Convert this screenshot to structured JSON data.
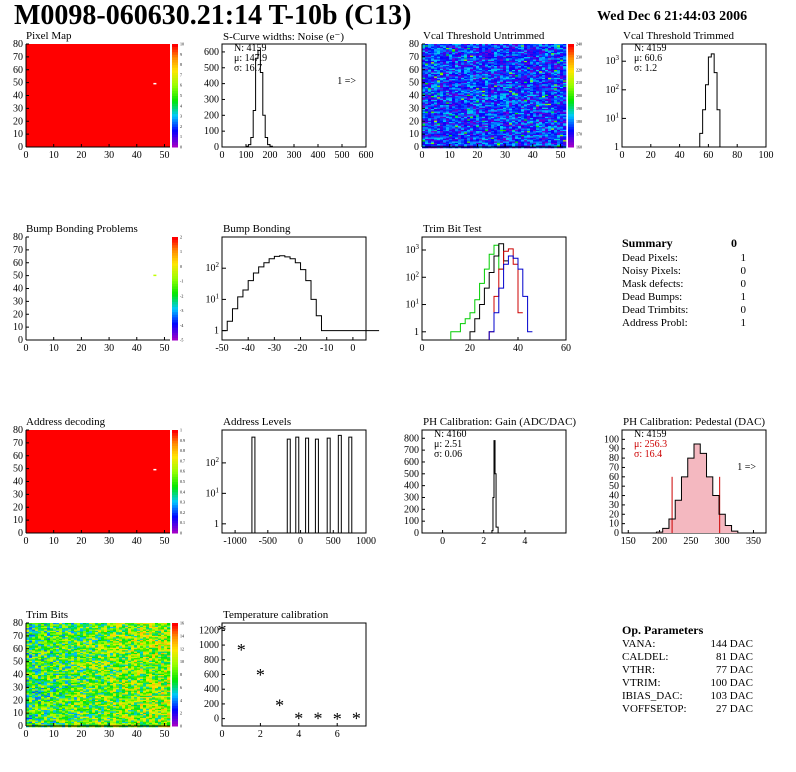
{
  "header": {
    "title": "M0098-060630.21:14 T-10b (C13)",
    "timestamp": "Wed Dec  6 21:44:03 2006"
  },
  "chart_data": [
    {
      "id": "pixel-map",
      "type": "heatmap",
      "title": "Pixel Map",
      "xlim": [
        0,
        52
      ],
      "ylim": [
        0,
        80
      ],
      "xticks": [
        0,
        10,
        20,
        30,
        40,
        50
      ],
      "yticks": [
        0,
        10,
        20,
        30,
        40,
        50,
        60,
        70,
        80
      ],
      "fill_color": "#ff0000",
      "hot_pixels": [
        [
          46,
          49
        ]
      ],
      "colorbar": {
        "min": 0,
        "max": 10,
        "ticks": [
          0,
          1,
          2,
          3,
          4,
          5,
          6,
          7,
          8,
          9,
          10
        ]
      }
    },
    {
      "id": "scurve-noise",
      "type": "line",
      "title": "S-Curve widths: Noise (e⁻)",
      "xlim": [
        0,
        600
      ],
      "ylim": [
        0,
        650
      ],
      "xticks": [
        0,
        100,
        200,
        300,
        400,
        500,
        600
      ],
      "yticks": [
        0,
        100,
        200,
        300,
        400,
        500,
        600
      ],
      "x": [
        90,
        100,
        110,
        120,
        130,
        140,
        150,
        160,
        170,
        180,
        190,
        200,
        210,
        220
      ],
      "y": [
        0,
        5,
        15,
        60,
        230,
        560,
        610,
        470,
        200,
        60,
        15,
        5,
        0,
        0
      ],
      "stats": {
        "n": "N: 4159",
        "mean": "μ: 147.9",
        "sigma": "σ: 16.7"
      },
      "annotation": "1 =>"
    },
    {
      "id": "vcal-untrimmed",
      "type": "heatmap",
      "title": "Vcal Threshold Untrimmed",
      "xlim": [
        0,
        52
      ],
      "ylim": [
        0,
        80
      ],
      "xticks": [
        0,
        10,
        20,
        30,
        40,
        50
      ],
      "yticks": [
        0,
        10,
        20,
        30,
        40,
        50,
        60,
        70,
        80
      ],
      "value_range": [
        160,
        240
      ],
      "colorbar": {
        "min": 160,
        "max": 240,
        "ticks": [
          160,
          170,
          180,
          190,
          200,
          210,
          220,
          230,
          240
        ]
      }
    },
    {
      "id": "vcal-trimmed",
      "type": "line",
      "title": "Vcal Threshold Trimmed",
      "log_y": true,
      "xlim": [
        0,
        100
      ],
      "ylim": [
        1,
        4000
      ],
      "xticks": [
        0,
        20,
        40,
        60,
        80,
        100
      ],
      "ytick_exps": [
        0,
        1,
        2,
        3
      ],
      "x": [
        52,
        54,
        56,
        58,
        60,
        62,
        64,
        66,
        68
      ],
      "y": [
        1,
        3,
        20,
        150,
        1400,
        1800,
        400,
        20,
        1
      ],
      "stats": {
        "n": "N: 4159",
        "mean": "μ: 60.6",
        "sigma": "σ:  1.2"
      }
    },
    {
      "id": "bump-problems",
      "type": "heatmap",
      "title": "Bump Bonding Problems",
      "xlim": [
        0,
        52
      ],
      "ylim": [
        0,
        80
      ],
      "xticks": [
        0,
        10,
        20,
        30,
        40,
        50
      ],
      "yticks": [
        0,
        10,
        20,
        30,
        40,
        50,
        60,
        70,
        80
      ],
      "fill_color": "#ffffff",
      "hot_pixels": [
        [
          46,
          50
        ]
      ],
      "colorbar": {
        "min": -5,
        "max": 2,
        "ticks": [
          -5,
          -4,
          -3,
          -2,
          -1,
          0,
          1,
          2
        ]
      }
    },
    {
      "id": "bump-bonding",
      "type": "line",
      "title": "Bump Bonding",
      "log_y": true,
      "xlim": [
        -50,
        5
      ],
      "ylim": [
        0.5,
        1000
      ],
      "xticks": [
        -50,
        -40,
        -30,
        -20,
        -10,
        0
      ],
      "ytick_exps": [
        0,
        1,
        2
      ],
      "x": [
        -50,
        -48,
        -46,
        -44,
        -42,
        -40,
        -38,
        -36,
        -34,
        -32,
        -30,
        -28,
        -26,
        -24,
        -22,
        -20,
        -18,
        -16,
        -14,
        -12,
        -10,
        0
      ],
      "y": [
        1,
        2,
        5,
        12,
        20,
        40,
        70,
        110,
        150,
        200,
        240,
        250,
        230,
        200,
        150,
        90,
        40,
        10,
        3,
        1,
        1,
        1
      ]
    },
    {
      "id": "trim-bit-test",
      "type": "line",
      "title": "Trim Bit Test",
      "log_y": true,
      "xlim": [
        0,
        60
      ],
      "ylim": [
        0.5,
        3000
      ],
      "xticks": [
        0,
        20,
        40,
        60
      ],
      "ytick_exps": [
        0,
        1,
        2,
        3
      ],
      "series": [
        {
          "color": "#00cc00",
          "x": [
            12,
            14,
            16,
            18,
            20,
            22,
            24,
            26,
            28,
            30,
            32
          ],
          "y": [
            1,
            1,
            2,
            3,
            5,
            15,
            60,
            200,
            700,
            1500,
            200
          ]
        },
        {
          "color": "#000000",
          "x": [
            20,
            22,
            24,
            26,
            28,
            30,
            32,
            34
          ],
          "y": [
            1,
            3,
            10,
            40,
            150,
            600,
            1700,
            400
          ]
        },
        {
          "color": "#cc0000",
          "x": [
            28,
            30,
            32,
            34,
            36,
            38,
            40
          ],
          "y": [
            1,
            20,
            200,
            900,
            1100,
            300,
            5
          ]
        },
        {
          "color": "#0000cc",
          "x": [
            28,
            30,
            32,
            34,
            36,
            38,
            40,
            42,
            44
          ],
          "y": [
            1,
            5,
            40,
            300,
            600,
            500,
            200,
            20,
            1
          ]
        }
      ]
    },
    {
      "id": "address-decoding",
      "type": "heatmap",
      "title": "Address decoding",
      "xlim": [
        0,
        52
      ],
      "ylim": [
        0,
        80
      ],
      "xticks": [
        0,
        10,
        20,
        30,
        40,
        50
      ],
      "yticks": [
        0,
        10,
        20,
        30,
        40,
        50,
        60,
        70,
        80
      ],
      "fill_color": "#ff0000",
      "hot_pixels": [
        [
          46,
          49
        ]
      ],
      "colorbar": {
        "min": 0,
        "max": 1,
        "ticks": [
          0,
          0.1,
          0.2,
          0.3,
          0.4,
          0.5,
          0.6,
          0.7,
          0.8,
          0.9,
          1
        ]
      }
    },
    {
      "id": "address-levels",
      "type": "bar",
      "title": "Address Levels",
      "log_y": true,
      "xlim": [
        -1200,
        1000
      ],
      "ylim": [
        0.5,
        1200
      ],
      "xticks": [
        -1000,
        -500,
        0,
        500,
        1000
      ],
      "ytick_exps": [
        0,
        1,
        2
      ],
      "peaks": [
        [
          -720,
          700
        ],
        [
          -180,
          600
        ],
        [
          -50,
          700
        ],
        [
          100,
          650
        ],
        [
          250,
          600
        ],
        [
          430,
          650
        ],
        [
          600,
          800
        ],
        [
          760,
          700
        ]
      ]
    },
    {
      "id": "ph-gain",
      "type": "line",
      "title": "PH Calibration: Gain (ADC/DAC)",
      "xlim": [
        -1,
        6
      ],
      "ylim": [
        0,
        870
      ],
      "xticks": [
        0,
        2,
        4
      ],
      "yticks": [
        0,
        100,
        200,
        300,
        400,
        500,
        600,
        700,
        800
      ],
      "x": [
        2.3,
        2.4,
        2.45,
        2.5,
        2.55,
        2.6,
        2.7
      ],
      "y": [
        0,
        20,
        300,
        780,
        500,
        50,
        0
      ],
      "stats": {
        "n": "N: 4160",
        "mean": "μ: 2.51",
        "sigma": "σ: 0.06"
      }
    },
    {
      "id": "ph-pedestal",
      "type": "line",
      "title": "PH Calibration: Pedestal (DAC)",
      "xlim": [
        140,
        370
      ],
      "ylim": [
        0,
        110
      ],
      "xticks": [
        150,
        200,
        250,
        300,
        350
      ],
      "yticks": [
        0,
        10,
        20,
        30,
        40,
        50,
        60,
        70,
        80,
        90,
        100
      ],
      "x": [
        195,
        205,
        215,
        225,
        235,
        245,
        255,
        265,
        275,
        285,
        295,
        305,
        315,
        325
      ],
      "y": [
        1,
        5,
        15,
        35,
        60,
        80,
        95,
        85,
        60,
        40,
        20,
        8,
        2,
        0
      ],
      "marker_x": [
        220,
        296
      ],
      "stats": {
        "n": "N: 4159",
        "mean": "μ: 256.3",
        "sigma": "σ: 16.4"
      },
      "annotation": "1 =>"
    },
    {
      "id": "trim-bits",
      "type": "heatmap",
      "title": "Trim Bits",
      "xlim": [
        0,
        52
      ],
      "ylim": [
        0,
        80
      ],
      "xticks": [
        0,
        10,
        20,
        30,
        40,
        50
      ],
      "yticks": [
        0,
        10,
        20,
        30,
        40,
        50,
        60,
        70,
        80
      ],
      "value_range": [
        0,
        16
      ],
      "colorbar": {
        "min": 0,
        "max": 16,
        "ticks": [
          0,
          2,
          4,
          6,
          8,
          10,
          12,
          14,
          16
        ]
      }
    },
    {
      "id": "temperature-calibration",
      "type": "scatter",
      "title": "Temperature calibration",
      "xlim": [
        0,
        7.5
      ],
      "ylim": [
        -100,
        1300
      ],
      "xticks": [
        0,
        2,
        4,
        6
      ],
      "yticks": [
        0,
        200,
        400,
        600,
        800,
        1000,
        1200
      ],
      "x": [
        0,
        1,
        2,
        3,
        4,
        5,
        6,
        7
      ],
      "y": [
        1200,
        930,
        590,
        180,
        0,
        0,
        -5,
        0
      ]
    }
  ],
  "summary": {
    "title": "Summary",
    "total": "0",
    "rows": [
      {
        "label": "Dead Pixels:",
        "value": "1"
      },
      {
        "label": "Noisy Pixels:",
        "value": "0"
      },
      {
        "label": "Mask defects:",
        "value": "0"
      },
      {
        "label": "Dead Bumps:",
        "value": "1"
      },
      {
        "label": "Dead Trimbits:",
        "value": "0"
      },
      {
        "label": "Address Probl:",
        "value": "1"
      }
    ]
  },
  "op_parameters": {
    "title": "Op. Parameters",
    "rows": [
      {
        "label": "VANA:",
        "value": "144 DAC"
      },
      {
        "label": "CALDEL:",
        "value": "81 DAC"
      },
      {
        "label": "VTHR:",
        "value": "77 DAC"
      },
      {
        "label": "VTRIM:",
        "value": "100 DAC"
      },
      {
        "label": "IBIAS_DAC:",
        "value": "103 DAC"
      },
      {
        "label": "VOFFSETOP:",
        "value": "27 DAC"
      }
    ]
  }
}
